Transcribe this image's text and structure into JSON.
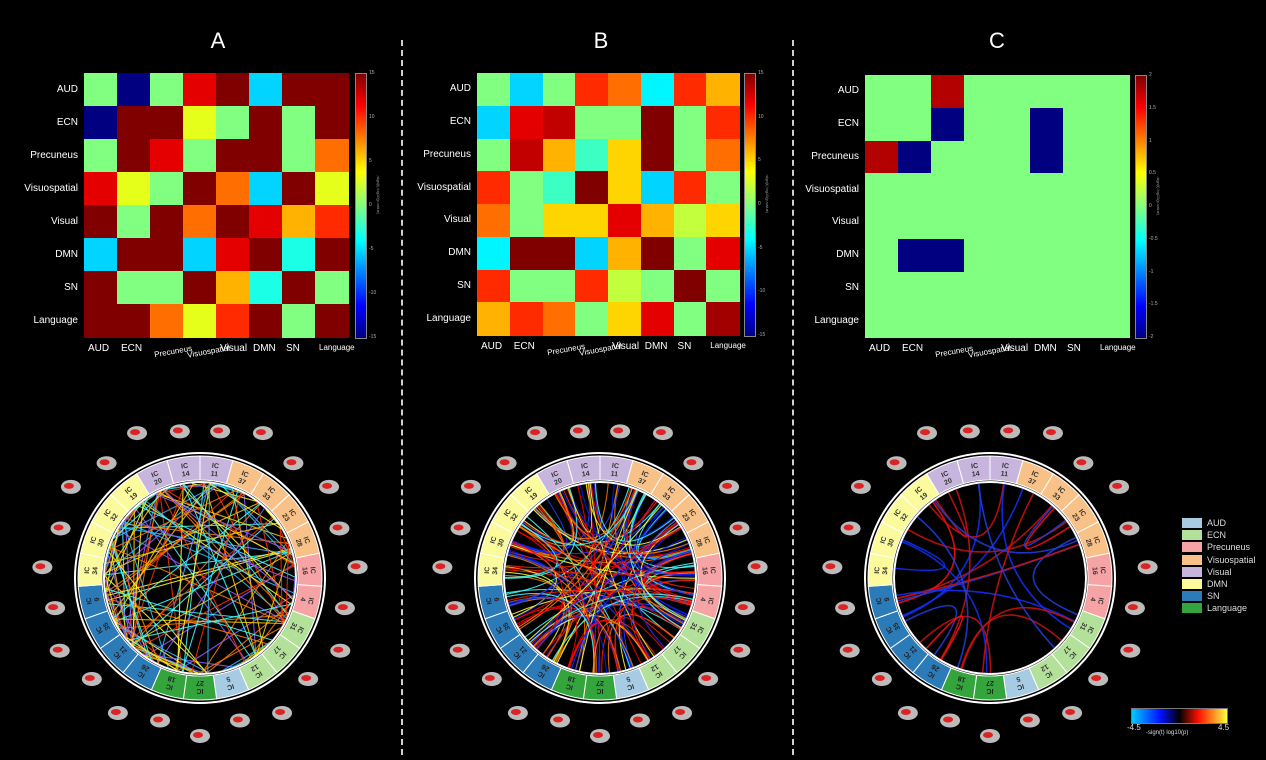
{
  "panels": [
    {
      "label": "A"
    },
    {
      "label": "B"
    },
    {
      "label": "C"
    }
  ],
  "networks": [
    "AUD",
    "ECN",
    "Precuneus",
    "Visuospatial",
    "Visual",
    "DMN",
    "SN",
    "Language"
  ],
  "matrix_colorbars": [
    {
      "ticks": [
        "15",
        "10",
        "5",
        "0",
        "-5",
        "-10",
        "-15"
      ],
      "title": "-sign(t) log10(p-value)"
    },
    {
      "ticks": [
        "15",
        "10",
        "5",
        "0",
        "-5",
        "-10",
        "-15"
      ],
      "title": "-sign(t) log10(p-value)"
    },
    {
      "ticks": [
        "2",
        "1.5",
        "1",
        "0.5",
        "0",
        "-0.5",
        "-1",
        "-1.5",
        "-2"
      ],
      "title": "-sign(t) log10(p-value)"
    }
  ],
  "chart_data": [
    {
      "type": "heatmap",
      "title": "A",
      "rows": [
        "AUD",
        "ECN",
        "Precuneus",
        "Visuospatial",
        "Visual",
        "DMN",
        "SN",
        "Language"
      ],
      "cols": [
        "AUD",
        "ECN",
        "Precuneus",
        "Visuospatial",
        "Visual",
        "DMN",
        "SN",
        "Language"
      ],
      "zlim": [
        -15,
        15
      ],
      "values": [
        [
          0,
          -15,
          0,
          12,
          15,
          -5,
          15,
          15
        ],
        [
          -15,
          15,
          15,
          3,
          0,
          15,
          0,
          15
        ],
        [
          0,
          15,
          12,
          0,
          15,
          15,
          0,
          8
        ],
        [
          12,
          3,
          0,
          15,
          8,
          -5,
          15,
          3
        ],
        [
          15,
          0,
          15,
          8,
          15,
          12,
          6,
          10
        ],
        [
          -5,
          15,
          15,
          -5,
          12,
          15,
          -3,
          15
        ],
        [
          15,
          0,
          0,
          15,
          6,
          -3,
          15,
          0
        ],
        [
          15,
          15,
          8,
          3,
          10,
          15,
          0,
          15
        ]
      ]
    },
    {
      "type": "heatmap",
      "title": "B",
      "rows": [
        "AUD",
        "ECN",
        "Precuneus",
        "Visuospatial",
        "Visual",
        "DMN",
        "SN",
        "Language"
      ],
      "cols": [
        "AUD",
        "ECN",
        "Precuneus",
        "Visuospatial",
        "Visual",
        "DMN",
        "SN",
        "Language"
      ],
      "zlim": [
        -15,
        15
      ],
      "values": [
        [
          0,
          -5,
          0,
          10,
          8,
          -4,
          10,
          6
        ],
        [
          -5,
          12,
          13,
          0,
          0,
          15,
          0,
          10
        ],
        [
          0,
          13,
          6,
          -2,
          5,
          15,
          0,
          8
        ],
        [
          10,
          0,
          -2,
          15,
          5,
          -5,
          10,
          0
        ],
        [
          8,
          0,
          5,
          5,
          12,
          6,
          2,
          5
        ],
        [
          -4,
          15,
          15,
          -5,
          6,
          15,
          0,
          12
        ],
        [
          10,
          0,
          0,
          10,
          2,
          0,
          15,
          0
        ],
        [
          6,
          10,
          8,
          0,
          5,
          12,
          0,
          14
        ]
      ]
    },
    {
      "type": "heatmap",
      "title": "C",
      "rows": [
        "AUD",
        "ECN",
        "Precuneus",
        "Visuospatial",
        "Visual",
        "DMN",
        "SN",
        "Language"
      ],
      "cols": [
        "AUD",
        "ECN",
        "Precuneus",
        "Visuospatial",
        "Visual",
        "DMN",
        "SN",
        "Language"
      ],
      "zlim": [
        -2,
        2
      ],
      "values": [
        [
          0,
          0,
          1.8,
          0,
          0,
          0,
          0,
          0
        ],
        [
          0,
          0,
          -2,
          0,
          0,
          -2,
          0,
          0
        ],
        [
          1.8,
          -2,
          0,
          0,
          0,
          -2,
          0,
          0
        ],
        [
          0,
          0,
          0,
          0,
          0,
          0,
          0,
          0
        ],
        [
          0,
          0,
          0,
          0,
          0,
          0,
          0,
          0
        ],
        [
          0,
          -2,
          -2,
          0,
          0,
          0,
          0,
          0
        ],
        [
          0,
          0,
          0,
          0,
          0,
          0,
          0,
          0
        ],
        [
          0,
          0,
          0,
          0,
          0,
          0,
          0,
          0
        ]
      ]
    }
  ],
  "ring_segments": [
    {
      "label": "IC 11",
      "network": "Visual"
    },
    {
      "label": "IC 37",
      "network": "Visuospatial"
    },
    {
      "label": "IC 33",
      "network": "Visuospatial"
    },
    {
      "label": "IC 23",
      "network": "Visuospatial"
    },
    {
      "label": "IC 28",
      "network": "Visuospatial"
    },
    {
      "label": "IC 16",
      "network": "Precuneus"
    },
    {
      "label": "IC 4",
      "network": "Precuneus"
    },
    {
      "label": "IC 31",
      "network": "ECN"
    },
    {
      "label": "IC 17",
      "network": "ECN"
    },
    {
      "label": "IC 12",
      "network": "ECN"
    },
    {
      "label": "IC 5",
      "network": "AUD"
    },
    {
      "label": "IC 27",
      "network": "Language"
    },
    {
      "label": "IC 18",
      "network": "Language"
    },
    {
      "label": "IC 26",
      "network": "SN"
    },
    {
      "label": "IC 21",
      "network": "SN"
    },
    {
      "label": "IC 35",
      "network": "SN"
    },
    {
      "label": "IC 9",
      "network": "SN"
    },
    {
      "label": "IC 34",
      "network": "DMN"
    },
    {
      "label": "IC 30",
      "network": "DMN"
    },
    {
      "label": "IC 32",
      "network": "DMN"
    },
    {
      "label": "IC 19",
      "network": "DMN"
    },
    {
      "label": "IC 20",
      "network": "Visual"
    },
    {
      "label": "IC 14",
      "network": "Visual"
    }
  ],
  "network_colors": {
    "AUD": "#a6cbe3",
    "ECN": "#b4e19a",
    "Precuneus": "#f6a3a6",
    "Visuospatial": "#f8c187",
    "Visual": "#c8b5dd",
    "DMN": "#fbfa9c",
    "SN": "#2b7bb9",
    "Language": "#34a53d"
  },
  "legend": [
    {
      "label": "AUD",
      "color": "#a6cbe3"
    },
    {
      "label": "ECN",
      "color": "#b4e19a"
    },
    {
      "label": "Precuneus",
      "color": "#f6a3a6"
    },
    {
      "label": "Visuospatial",
      "color": "#f8c187"
    },
    {
      "label": "Visual",
      "color": "#c8b5dd"
    },
    {
      "label": "DMN",
      "color": "#fbfa9c"
    },
    {
      "label": "SN",
      "color": "#2b7bb9"
    },
    {
      "label": "Language",
      "color": "#34a53d"
    }
  ],
  "scalebar": {
    "min": "-4.5",
    "max": "4.5",
    "title": "-sign(t) log10(p)"
  }
}
